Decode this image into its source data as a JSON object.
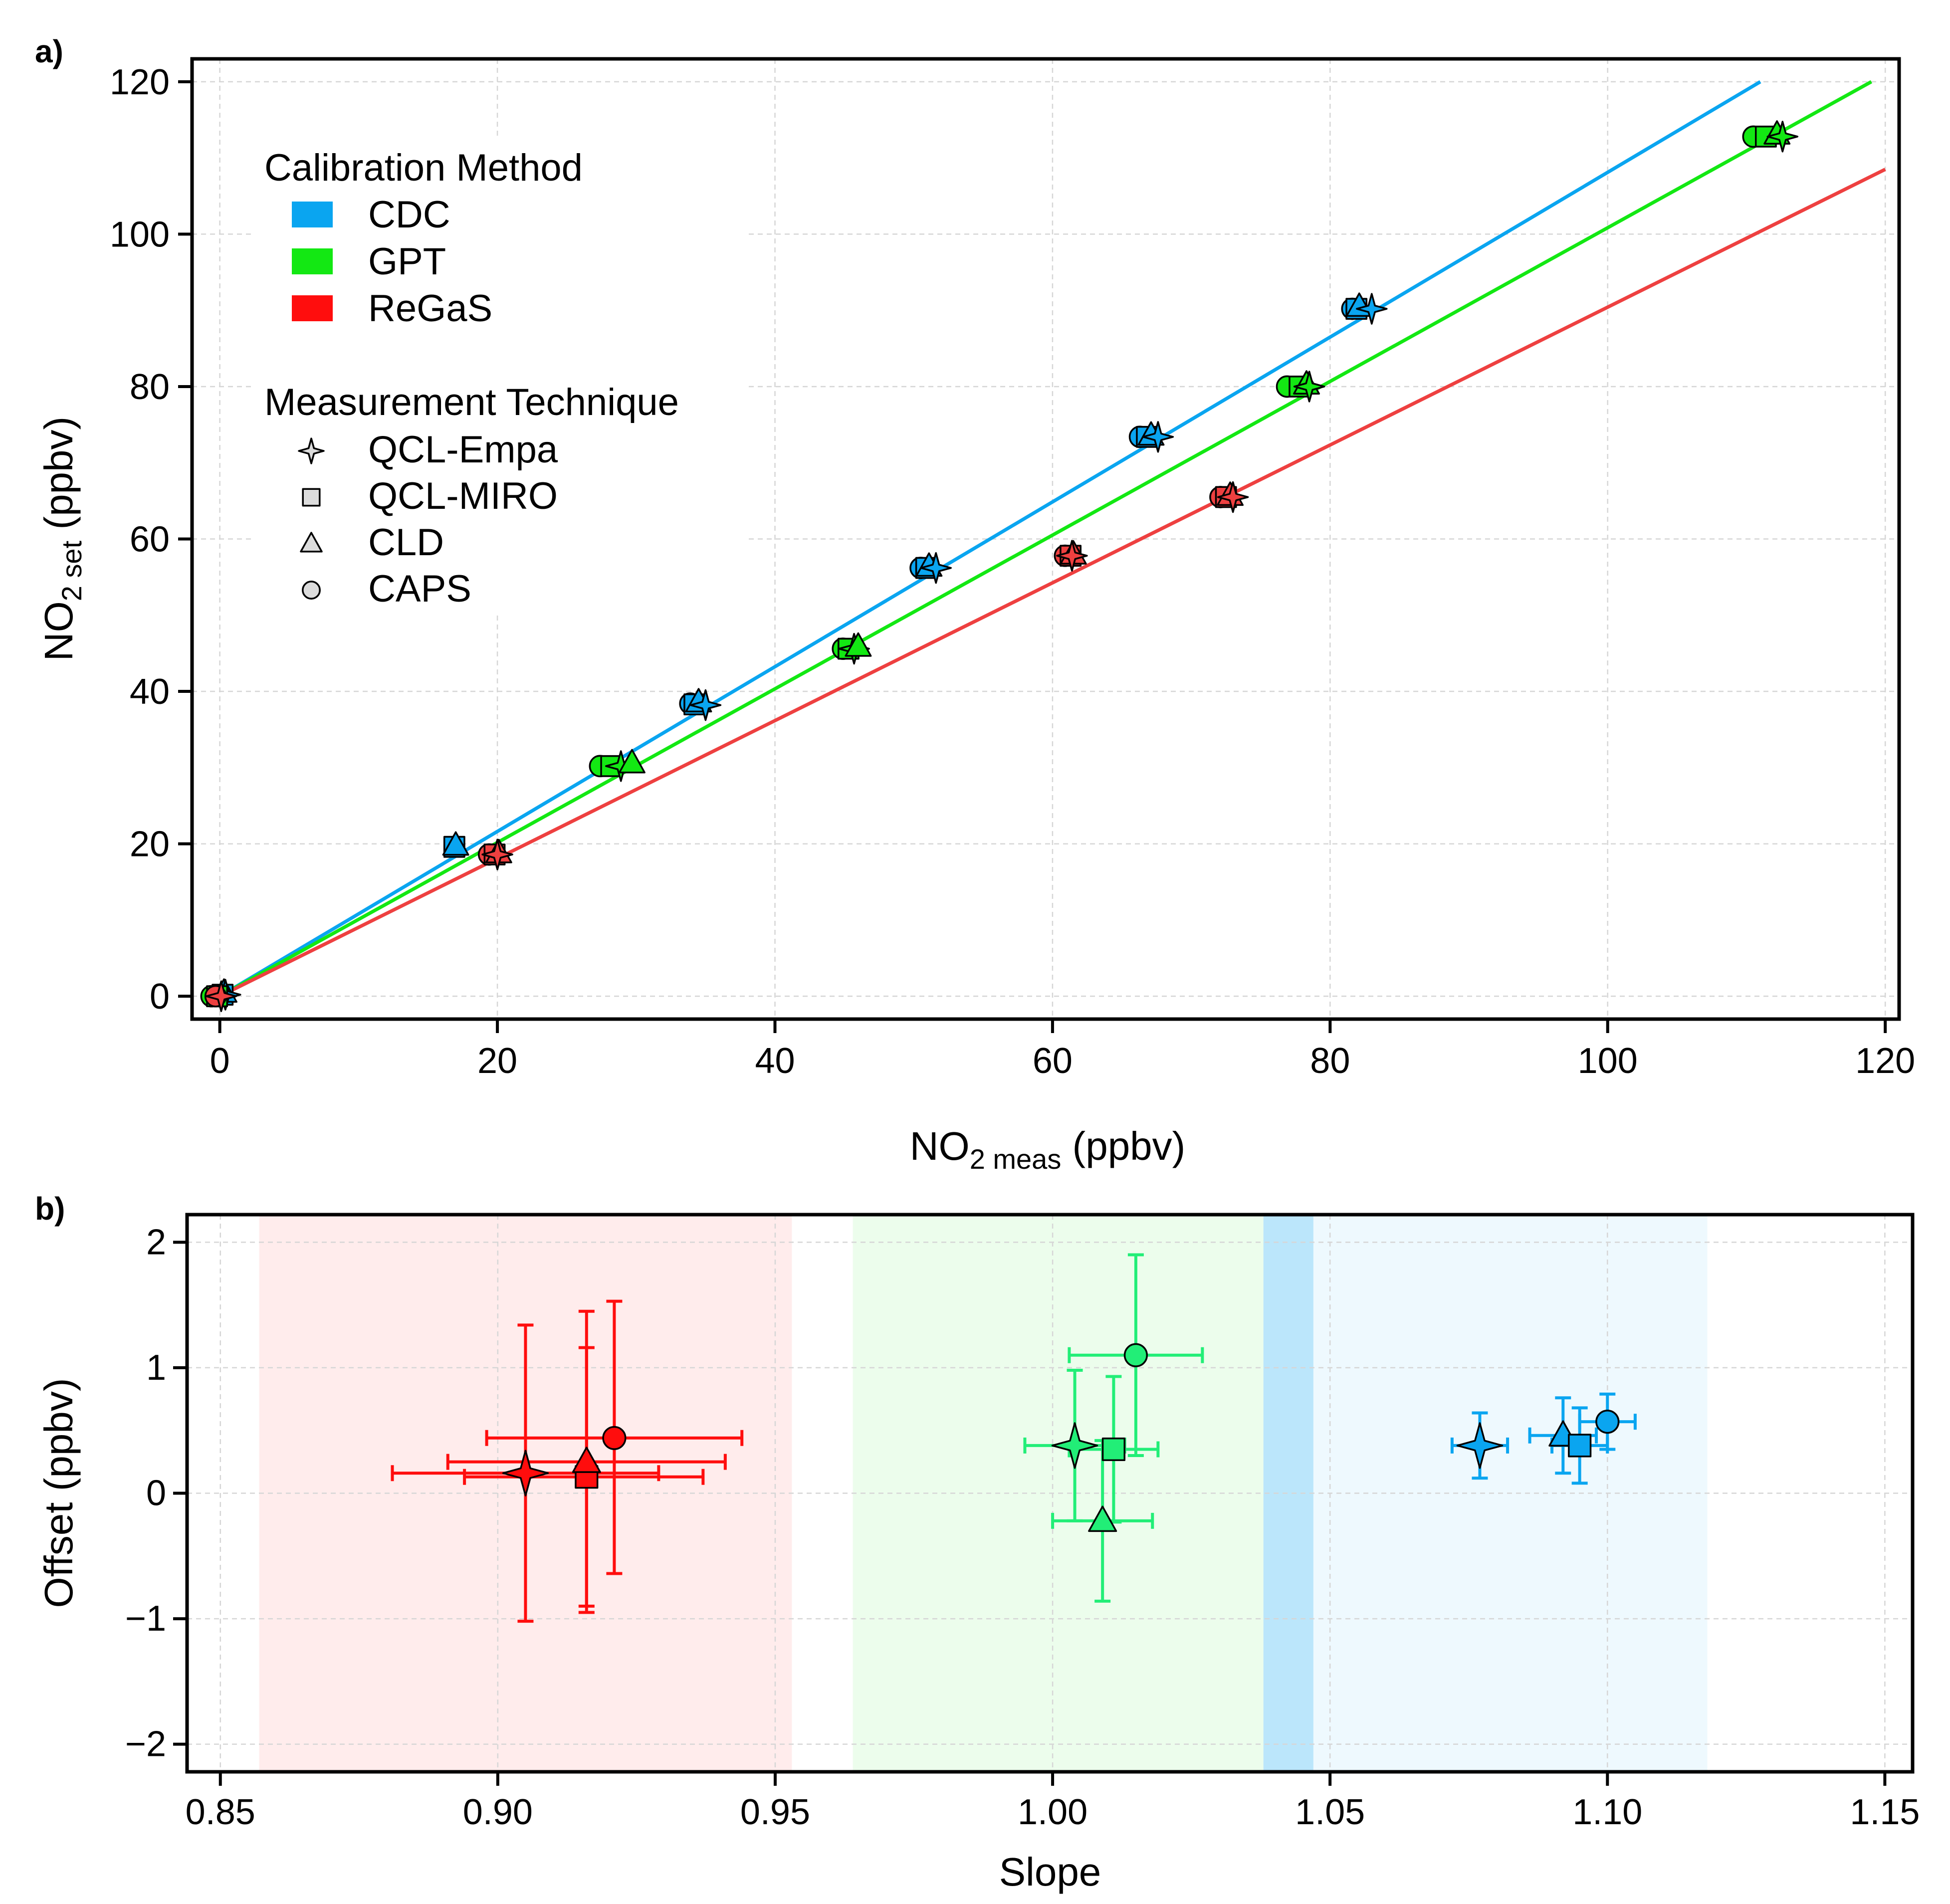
{
  "chart_data": [
    {
      "panel_label": "a)",
      "type": "scatter",
      "xlabel": "NO2 meas (ppbv)",
      "xlabel_parts": {
        "main": "NO",
        "sub": "2 meas",
        "tail": " (ppbv)"
      },
      "ylabel": "NO2 set (ppbv)",
      "ylabel_parts": {
        "main": "NO",
        "sub": "2 set",
        "tail": " (ppbv)"
      },
      "xlim": [
        -2,
        121
      ],
      "ylim": [
        -3,
        123
      ],
      "xticks": [
        0,
        20,
        40,
        60,
        80,
        100,
        120
      ],
      "yticks": [
        0,
        20,
        40,
        60,
        80,
        100,
        120
      ],
      "grid": true,
      "legend": {
        "position": "top-left",
        "groups": [
          {
            "title": "Calibration Method",
            "items": [
              {
                "label": "CDC",
                "swatch": "#0aa5f0"
              },
              {
                "label": "GPT",
                "swatch": "#13e813"
              },
              {
                "label": "ReGaS",
                "swatch": "#ff0d0d"
              }
            ]
          },
          {
            "title": "Measurement Technique",
            "items": [
              {
                "label": "QCL-Empa",
                "marker": "star4"
              },
              {
                "label": "QCL-MIRO",
                "marker": "square"
              },
              {
                "label": "CLD",
                "marker": "triangle"
              },
              {
                "label": "CAPS",
                "marker": "circle"
              }
            ]
          }
        ]
      },
      "fit_lines": [
        {
          "method": "CDC",
          "color": "#0aa5f0",
          "x": [
            0,
            111
          ],
          "y": [
            0,
            120
          ]
        },
        {
          "method": "GPT",
          "color": "#13e813",
          "x": [
            0,
            119
          ],
          "y": [
            0,
            120
          ]
        },
        {
          "method": "ReGaS",
          "color": "#ee4040",
          "x": [
            0,
            120
          ],
          "y": [
            0,
            108.5
          ]
        }
      ],
      "series": [
        {
          "method": "CDC",
          "color": "#0aa5f0",
          "points": [
            {
              "technique": "CAPS",
              "x": 0.0,
              "y": 0.0
            },
            {
              "technique": "QCL-MIRO",
              "x": 0.2,
              "y": 0.2
            },
            {
              "technique": "CLD",
              "x": 0.3,
              "y": 0.5
            },
            {
              "technique": "QCL-Empa",
              "x": 0.4,
              "y": 0.2
            },
            {
              "technique": "QCL-MIRO",
              "x": 16.9,
              "y": 19.6
            },
            {
              "technique": "CLD",
              "x": 17.0,
              "y": 19.8
            },
            {
              "technique": "CAPS",
              "x": 33.9,
              "y": 38.4
            },
            {
              "technique": "QCL-MIRO",
              "x": 34.2,
              "y": 38.3
            },
            {
              "technique": "CLD",
              "x": 34.5,
              "y": 38.6
            },
            {
              "technique": "QCL-Empa",
              "x": 35.0,
              "y": 38.2
            },
            {
              "technique": "CAPS",
              "x": 50.5,
              "y": 56.2
            },
            {
              "technique": "QCL-MIRO",
              "x": 50.9,
              "y": 56.2
            },
            {
              "technique": "CLD",
              "x": 51.1,
              "y": 56.4
            },
            {
              "technique": "QCL-Empa",
              "x": 51.6,
              "y": 56.2
            },
            {
              "technique": "CAPS",
              "x": 66.3,
              "y": 73.4
            },
            {
              "technique": "QCL-MIRO",
              "x": 66.8,
              "y": 73.4
            },
            {
              "technique": "CLD",
              "x": 67.1,
              "y": 73.6
            },
            {
              "technique": "QCL-Empa",
              "x": 67.6,
              "y": 73.4
            },
            {
              "technique": "CAPS",
              "x": 81.6,
              "y": 90.2
            },
            {
              "technique": "QCL-MIRO",
              "x": 81.9,
              "y": 90.2
            },
            {
              "technique": "CLD",
              "x": 82.1,
              "y": 90.5
            },
            {
              "technique": "QCL-Empa",
              "x": 83.0,
              "y": 90.2
            }
          ]
        },
        {
          "method": "GPT",
          "color": "#13e813",
          "points": [
            {
              "technique": "CAPS",
              "x": -0.6,
              "y": 0.0
            },
            {
              "technique": "QCL-MIRO",
              "x": -0.2,
              "y": 0.0
            },
            {
              "technique": "CAPS",
              "x": 27.4,
              "y": 30.2
            },
            {
              "technique": "QCL-MIRO",
              "x": 28.2,
              "y": 30.2
            },
            {
              "technique": "QCL-Empa",
              "x": 28.9,
              "y": 30.2
            },
            {
              "technique": "CLD",
              "x": 29.7,
              "y": 30.6
            },
            {
              "technique": "CAPS",
              "x": 44.9,
              "y": 45.6
            },
            {
              "technique": "QCL-MIRO",
              "x": 45.3,
              "y": 45.6
            },
            {
              "technique": "QCL-Empa",
              "x": 45.7,
              "y": 45.6
            },
            {
              "technique": "CLD",
              "x": 46.0,
              "y": 45.9
            },
            {
              "technique": "CAPS",
              "x": 76.9,
              "y": 80.0
            },
            {
              "technique": "QCL-MIRO",
              "x": 77.8,
              "y": 80.0
            },
            {
              "technique": "CLD",
              "x": 78.3,
              "y": 80.3
            },
            {
              "technique": "QCL-Empa",
              "x": 78.5,
              "y": 80.0
            },
            {
              "technique": "CAPS",
              "x": 110.5,
              "y": 112.8
            },
            {
              "technique": "QCL-MIRO",
              "x": 111.4,
              "y": 112.8
            },
            {
              "technique": "CLD",
              "x": 112.2,
              "y": 113.1
            },
            {
              "technique": "QCL-Empa",
              "x": 112.6,
              "y": 112.8
            }
          ]
        },
        {
          "method": "ReGaS",
          "color": "#ee4040",
          "points": [
            {
              "technique": "CAPS",
              "x": -0.3,
              "y": 0.0
            },
            {
              "technique": "QCL-Empa",
              "x": 0.1,
              "y": 0.0
            },
            {
              "technique": "CAPS",
              "x": 19.4,
              "y": 18.6
            },
            {
              "technique": "QCL-MIRO",
              "x": 19.8,
              "y": 18.6
            },
            {
              "technique": "CLD",
              "x": 20.1,
              "y": 18.8
            },
            {
              "technique": "QCL-Empa",
              "x": 20.0,
              "y": 18.6
            },
            {
              "technique": "CAPS",
              "x": 60.9,
              "y": 57.8
            },
            {
              "technique": "QCL-MIRO",
              "x": 61.3,
              "y": 57.8
            },
            {
              "technique": "CLD",
              "x": 61.5,
              "y": 58.0
            },
            {
              "technique": "QCL-Empa",
              "x": 61.4,
              "y": 57.8
            },
            {
              "technique": "CAPS",
              "x": 72.1,
              "y": 65.5
            },
            {
              "technique": "QCL-MIRO",
              "x": 72.5,
              "y": 65.5
            },
            {
              "technique": "CLD",
              "x": 72.8,
              "y": 65.7
            },
            {
              "technique": "QCL-Empa",
              "x": 73.0,
              "y": 65.5
            }
          ]
        }
      ]
    },
    {
      "panel_label": "b)",
      "type": "scatter",
      "xlabel": "Slope",
      "ylabel": "Offset (ppbv)",
      "xlim": [
        0.844,
        1.155
      ],
      "ylim": [
        -2.22,
        2.22
      ],
      "xticks": [
        0.85,
        0.9,
        0.95,
        1.0,
        1.05,
        1.1,
        1.15
      ],
      "xticklabels": [
        "0.85",
        "0.90",
        "0.95",
        "1.00",
        "1.05",
        "1.10",
        "1.15"
      ],
      "yticks": [
        -2,
        -1,
        0,
        1,
        2
      ],
      "yticklabels": [
        "−2",
        "−1",
        "0",
        "1",
        "2"
      ],
      "grid": true,
      "bands": [
        {
          "method": "ReGaS",
          "x": [
            0.857,
            0.953
          ],
          "color": "#ff0d0d",
          "opacity": 0.08
        },
        {
          "method": "GPT",
          "x": [
            0.964,
            1.038
          ],
          "color": "#13e813",
          "opacity": 0.08
        },
        {
          "method": "CDC",
          "x": [
            1.038,
            1.118
          ],
          "color": "#0aa5f0",
          "opacity": 0.07
        },
        {
          "method": "CDC",
          "x": [
            1.038,
            1.047
          ],
          "color": "#0aa5f0",
          "opacity": 0.22
        }
      ],
      "series": [
        {
          "method": "ReGaS",
          "color": "#ff0d0d",
          "points": [
            {
              "technique": "QCL-Empa",
              "x": 0.905,
              "y": 0.16,
              "xerr": [
                0.024,
                0.024
              ],
              "yerr": [
                1.18,
                1.18
              ]
            },
            {
              "technique": "QCL-MIRO",
              "x": 0.916,
              "y": 0.13,
              "xerr": [
                0.022,
                0.021
              ],
              "yerr": [
                1.03,
                1.03
              ]
            },
            {
              "technique": "CLD",
              "x": 0.916,
              "y": 0.25,
              "xerr": [
                0.025,
                0.025
              ],
              "yerr": [
                1.2,
                1.2
              ]
            },
            {
              "technique": "CAPS",
              "x": 0.921,
              "y": 0.44,
              "xerr": [
                0.023,
                0.023
              ],
              "yerr": [
                1.08,
                1.09
              ]
            }
          ]
        },
        {
          "method": "GPT",
          "color": "#22ee77",
          "points": [
            {
              "technique": "QCL-Empa",
              "x": 1.004,
              "y": 0.38,
              "xerr": [
                0.009,
                0.009
              ],
              "yerr": [
                0.6,
                0.6
              ]
            },
            {
              "technique": "QCL-MIRO",
              "x": 1.011,
              "y": 0.35,
              "xerr": [
                0.008,
                0.008
              ],
              "yerr": [
                0.58,
                0.58
              ]
            },
            {
              "technique": "CLD",
              "x": 1.009,
              "y": -0.22,
              "xerr": [
                0.009,
                0.009
              ],
              "yerr": [
                0.64,
                0.64
              ]
            },
            {
              "technique": "CAPS",
              "x": 1.015,
              "y": 1.1,
              "xerr": [
                0.012,
                0.012
              ],
              "yerr": [
                0.8,
                0.8
              ]
            }
          ]
        },
        {
          "method": "CDC",
          "color": "#0aa5f0",
          "points": [
            {
              "technique": "QCL-Empa",
              "x": 1.077,
              "y": 0.38,
              "xerr": [
                0.005,
                0.005
              ],
              "yerr": [
                0.26,
                0.26
              ]
            },
            {
              "technique": "CLD",
              "x": 1.092,
              "y": 0.46,
              "xerr": [
                0.006,
                0.006
              ],
              "yerr": [
                0.3,
                0.3
              ]
            },
            {
              "technique": "QCL-MIRO",
              "x": 1.095,
              "y": 0.38,
              "xerr": [
                0.005,
                0.005
              ],
              "yerr": [
                0.3,
                0.3
              ]
            },
            {
              "technique": "CAPS",
              "x": 1.1,
              "y": 0.57,
              "xerr": [
                0.005,
                0.005
              ],
              "yerr": [
                0.22,
                0.22
              ]
            }
          ]
        }
      ]
    }
  ]
}
